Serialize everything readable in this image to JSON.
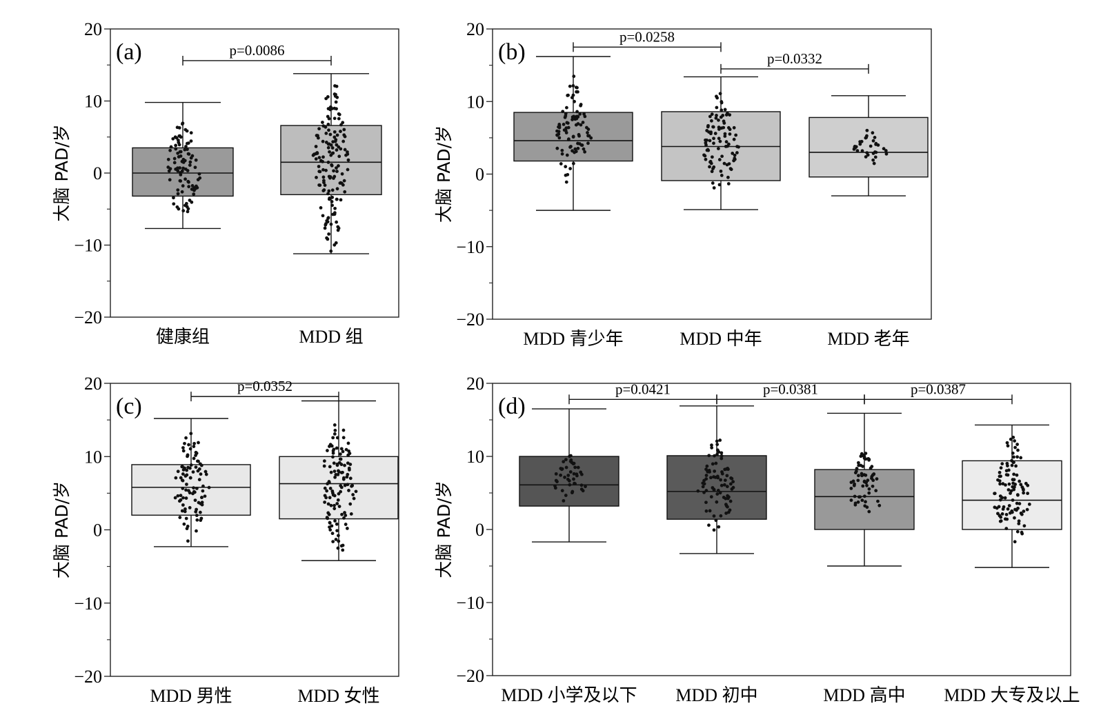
{
  "y_axis_label": "大脑 PAD/岁",
  "y_ticks": [
    "20",
    "10",
    "0",
    "−10",
    "−20"
  ],
  "colors": {
    "dark": "#595959",
    "mid": "#9a9a9a",
    "light": "#c4c4c4",
    "lighter": "#dcdcdc",
    "lightest": "#ececec"
  },
  "chart_data": [
    {
      "type": "box",
      "panel_label": "(a)",
      "ylabel": "大脑 PAD/岁",
      "ylim": [
        -20,
        20
      ],
      "categories": [
        "健康组",
        "MDD 组"
      ],
      "boxes": [
        {
          "whisker_low": -7.7,
          "q1": -3.2,
          "median": 0.0,
          "q3": 3.5,
          "whisker_high": 9.8,
          "points_min": -7.3,
          "points_max": 8.6,
          "fill": "#9a9a9a"
        },
        {
          "whisker_low": -11.2,
          "q1": -3.0,
          "median": 1.5,
          "q3": 6.6,
          "whisker_high": 13.8,
          "points_min": -11.0,
          "points_max": 13.5,
          "fill": "#bdbdbd"
        }
      ],
      "significance": [
        {
          "from": 0,
          "to": 1,
          "label": "p=0.0086",
          "y": 15.6
        }
      ]
    },
    {
      "type": "box",
      "panel_label": "(b)",
      "ylabel": "大脑 PAD/岁",
      "ylim": [
        -20,
        20
      ],
      "categories": [
        "MDD 青少年",
        "MDD 中年",
        "MDD 老年"
      ],
      "boxes": [
        {
          "whisker_low": -5.0,
          "q1": 1.8,
          "median": 4.6,
          "q3": 8.5,
          "whisker_high": 16.2,
          "points_min": -1.2,
          "points_max": 14.0,
          "fill": "#9a9a9a"
        },
        {
          "whisker_low": -4.9,
          "q1": -0.9,
          "median": 3.8,
          "q3": 8.6,
          "whisker_high": 13.4,
          "points_min": -3.0,
          "points_max": 12.3,
          "fill": "#c4c4c4"
        },
        {
          "whisker_low": -3.0,
          "q1": -0.4,
          "median": 3.0,
          "q3": 7.8,
          "whisker_high": 10.8,
          "points_min": 1.0,
          "points_max": 6.5,
          "fill": "#cfcfcf"
        }
      ],
      "significance": [
        {
          "from": 0,
          "to": 1,
          "label": "p=0.0258",
          "y": 17.5
        },
        {
          "from": 1,
          "to": 2,
          "label": "p=0.0332",
          "y": 14.5
        }
      ]
    },
    {
      "type": "box",
      "panel_label": "(c)",
      "ylabel": "大脑 PAD/岁",
      "ylim": [
        -20,
        20
      ],
      "categories": [
        "MDD 男性",
        "MDD 女性"
      ],
      "boxes": [
        {
          "whisker_low": -2.3,
          "q1": 2.0,
          "median": 5.8,
          "q3": 8.9,
          "whisker_high": 15.2,
          "points_min": -1.7,
          "points_max": 14.0,
          "fill": "#e8e8e8"
        },
        {
          "whisker_low": -4.2,
          "q1": 1.5,
          "median": 6.3,
          "q3": 10.0,
          "whisker_high": 17.6,
          "points_min": -3.8,
          "points_max": 15.5,
          "fill": "#e8e8e8"
        }
      ],
      "significance": [
        {
          "from": 0,
          "to": 1,
          "label": "p=0.0352",
          "y": 18.2
        }
      ]
    },
    {
      "type": "box",
      "panel_label": "(d)",
      "ylabel": "大脑 PAD/岁",
      "ylim": [
        -20,
        20
      ],
      "categories": [
        "MDD 小学及以下",
        "MDD 初中",
        "MDD 高中",
        "MDD 大专及以上"
      ],
      "boxes": [
        {
          "whisker_low": -1.7,
          "q1": 3.2,
          "median": 6.1,
          "q3": 10.0,
          "whisker_high": 16.5,
          "points_min": 3.7,
          "points_max": 11.0,
          "fill": "#555555"
        },
        {
          "whisker_low": -3.3,
          "q1": 1.4,
          "median": 5.2,
          "q3": 10.1,
          "whisker_high": 16.9,
          "points_min": -0.7,
          "points_max": 13.2,
          "fill": "#5a5a5a"
        },
        {
          "whisker_low": -5.0,
          "q1": 0.0,
          "median": 4.5,
          "q3": 8.2,
          "whisker_high": 15.9,
          "points_min": 0.5,
          "points_max": 11.5,
          "fill": "#999999"
        },
        {
          "whisker_low": -5.2,
          "q1": 0.0,
          "median": 4.0,
          "q3": 9.4,
          "whisker_high": 14.3,
          "points_min": -3.7,
          "points_max": 13.5,
          "fill": "#ececec"
        }
      ],
      "significance": [
        {
          "from": 0,
          "to": 1,
          "label": "p=0.0421",
          "y": 17.8
        },
        {
          "from": 1,
          "to": 2,
          "label": "p=0.0381",
          "y": 17.8
        },
        {
          "from": 2,
          "to": 3,
          "label": "p=0.0387",
          "y": 17.8
        }
      ]
    }
  ]
}
